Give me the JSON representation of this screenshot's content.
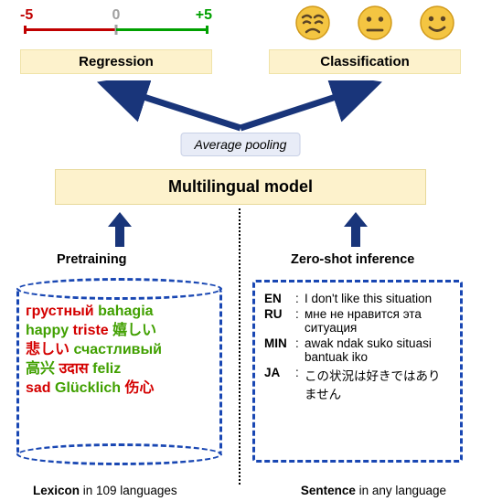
{
  "colors": {
    "yellow_bg": "#fdf2cc",
    "blue_bg": "#e8ecf7",
    "dashed_blue": "#1947b3",
    "arrow_blue": "#19357a",
    "red": "#d40000",
    "green": "#40a000",
    "scale_red": "#c00000",
    "scale_green": "#00a000",
    "gray": "#a0a0a0"
  },
  "scale": {
    "neg": "-5",
    "zero": "0",
    "pos": "+5"
  },
  "tasks": {
    "regression": "Regression",
    "classification": "Classification"
  },
  "emoji": {
    "sad": "sad-emoji",
    "neutral": "neutral-emoji",
    "happy": "happy-emoji",
    "face_color": "#f4c542",
    "face_outline": "#d19a1a",
    "feature_color": "#5b4426"
  },
  "avg_pooling": "Average pooling",
  "model": "Multilingual model",
  "sections": {
    "pretraining": "Pretraining",
    "zeroshot": "Zero-shot inference"
  },
  "lexicon_words": [
    {
      "t": "грустный",
      "c": "red"
    },
    {
      "t": "bahagia",
      "c": "green"
    },
    {
      "t": "happy",
      "c": "green"
    },
    {
      "t": "triste",
      "c": "red"
    },
    {
      "t": "嬉しい",
      "c": "green"
    },
    {
      "t": "悲しい",
      "c": "red"
    },
    {
      "t": "счастливый",
      "c": "green"
    },
    {
      "t": "高兴",
      "c": "green"
    },
    {
      "t": "उदास",
      "c": "red"
    },
    {
      "t": "feliz",
      "c": "green"
    },
    {
      "t": "sad",
      "c": "red"
    },
    {
      "t": "Glücklich",
      "c": "green"
    },
    {
      "t": "伤心",
      "c": "red"
    }
  ],
  "sentences": [
    {
      "code": "EN",
      "text": "I don't like this situation"
    },
    {
      "code": "RU",
      "text": "мне не нравится эта ситуация"
    },
    {
      "code": "MIN",
      "text": "awak ndak suko situasi bantuak iko"
    },
    {
      "code": "JA",
      "text": "この状況は好きではありません"
    }
  ],
  "captions": {
    "left_bold": "Lexicon",
    "left_rest": " in 109 languages",
    "right_bold": "Sentence",
    "right_rest": " in any language"
  }
}
